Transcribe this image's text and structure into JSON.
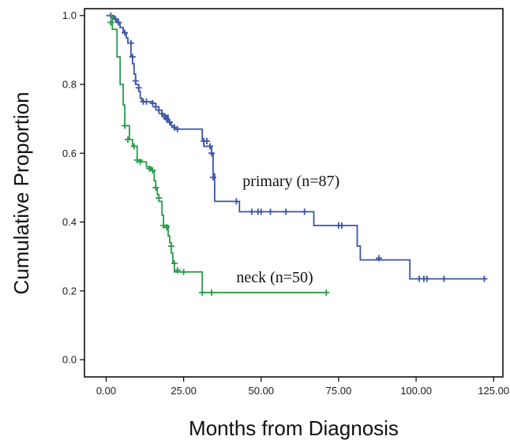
{
  "chart_data": {
    "type": "line",
    "xlabel": "Months from Diagnosis",
    "ylabel": "Cumulative Proportion",
    "xlim": [
      -7,
      128
    ],
    "ylim": [
      -0.05,
      1.02
    ],
    "x_ticks": [
      "0.00",
      "25.00",
      "50.00",
      "75.00",
      "100.00",
      "125.00"
    ],
    "x_tick_values": [
      0,
      25,
      50,
      75,
      100,
      125
    ],
    "y_ticks": [
      "0.0",
      "0.2",
      "0.4",
      "0.6",
      "0.8",
      "1.0"
    ],
    "y_tick_values": [
      0,
      0.2,
      0.4,
      0.6,
      0.8,
      1.0
    ],
    "grid": false,
    "step": true,
    "series": [
      {
        "name": "primary (n=87)",
        "color": "#3a55a6",
        "label_anchor": {
          "x": 44,
          "y": 0.505
        },
        "steps": [
          [
            0,
            1.0
          ],
          [
            2,
            1.0
          ],
          [
            2.5,
            0.99
          ],
          [
            3.5,
            0.98
          ],
          [
            4.5,
            0.965
          ],
          [
            5.5,
            0.95
          ],
          [
            6.5,
            0.935
          ],
          [
            7,
            0.92
          ],
          [
            8,
            0.88
          ],
          [
            8.5,
            0.86
          ],
          [
            9,
            0.83
          ],
          [
            9.5,
            0.8
          ],
          [
            10.5,
            0.78
          ],
          [
            11,
            0.76
          ],
          [
            11.5,
            0.75
          ],
          [
            15,
            0.745
          ],
          [
            16,
            0.735
          ],
          [
            17,
            0.725
          ],
          [
            18,
            0.71
          ],
          [
            20,
            0.69
          ],
          [
            21,
            0.68
          ],
          [
            22,
            0.67
          ],
          [
            31,
            0.64
          ],
          [
            31.5,
            0.62
          ],
          [
            34,
            0.6
          ],
          [
            34.5,
            0.54
          ],
          [
            35,
            0.46
          ],
          [
            42,
            0.46
          ],
          [
            43,
            0.43
          ],
          [
            65,
            0.43
          ],
          [
            67,
            0.39
          ],
          [
            78,
            0.39
          ],
          [
            81,
            0.33
          ],
          [
            82,
            0.29
          ],
          [
            97,
            0.29
          ],
          [
            98,
            0.235
          ],
          [
            122,
            0.235
          ]
        ],
        "censored": [
          [
            1.5,
            1.0
          ],
          [
            3,
            0.99
          ],
          [
            4,
            0.98
          ],
          [
            6,
            0.95
          ],
          [
            8,
            0.92
          ],
          [
            8.5,
            0.88
          ],
          [
            9.5,
            0.81
          ],
          [
            10.5,
            0.79
          ],
          [
            12,
            0.75
          ],
          [
            13,
            0.75
          ],
          [
            15,
            0.745
          ],
          [
            16,
            0.735
          ],
          [
            17,
            0.725
          ],
          [
            18,
            0.715
          ],
          [
            19,
            0.705
          ],
          [
            19.5,
            0.7
          ],
          [
            20.5,
            0.69
          ],
          [
            22,
            0.675
          ],
          [
            23,
            0.67
          ],
          [
            31.5,
            0.635
          ],
          [
            32.5,
            0.635
          ],
          [
            33.5,
            0.62
          ],
          [
            34,
            0.6
          ],
          [
            34.5,
            0.53
          ],
          [
            42,
            0.46
          ],
          [
            47,
            0.43
          ],
          [
            49,
            0.43
          ],
          [
            50,
            0.43
          ],
          [
            53,
            0.43
          ],
          [
            58,
            0.43
          ],
          [
            64,
            0.43
          ],
          [
            75,
            0.39
          ],
          [
            76,
            0.39
          ],
          [
            88,
            0.295
          ],
          [
            101,
            0.235
          ],
          [
            102.5,
            0.235
          ],
          [
            103.5,
            0.235
          ],
          [
            109,
            0.235
          ],
          [
            122,
            0.235
          ]
        ]
      },
      {
        "name": "neck (n=50)",
        "color": "#2a9a4a",
        "label_anchor": {
          "x": 42,
          "y": 0.225
        },
        "steps": [
          [
            0,
            1.0
          ],
          [
            1.5,
            1.0
          ],
          [
            2,
            0.96
          ],
          [
            3.5,
            0.88
          ],
          [
            4.5,
            0.8
          ],
          [
            5.5,
            0.74
          ],
          [
            6,
            0.68
          ],
          [
            7.5,
            0.64
          ],
          [
            8.5,
            0.62
          ],
          [
            10,
            0.58
          ],
          [
            11.5,
            0.575
          ],
          [
            13,
            0.56
          ],
          [
            14.5,
            0.55
          ],
          [
            15.5,
            0.52
          ],
          [
            16,
            0.5
          ],
          [
            16.5,
            0.48
          ],
          [
            17,
            0.46
          ],
          [
            18,
            0.42
          ],
          [
            18.5,
            0.39
          ],
          [
            20,
            0.36
          ],
          [
            20.5,
            0.34
          ],
          [
            21,
            0.31
          ],
          [
            21.5,
            0.28
          ],
          [
            22,
            0.255
          ],
          [
            31,
            0.195
          ],
          [
            71,
            0.195
          ]
        ],
        "censored": [
          [
            1.5,
            0.98
          ],
          [
            6,
            0.68
          ],
          [
            7,
            0.64
          ],
          [
            9,
            0.62
          ],
          [
            10,
            0.58
          ],
          [
            11,
            0.575
          ],
          [
            14,
            0.555
          ],
          [
            15,
            0.55
          ],
          [
            16,
            0.5
          ],
          [
            17,
            0.47
          ],
          [
            18.5,
            0.39
          ],
          [
            19.5,
            0.385
          ],
          [
            21,
            0.33
          ],
          [
            22,
            0.28
          ],
          [
            23,
            0.26
          ],
          [
            25,
            0.255
          ],
          [
            31,
            0.195
          ],
          [
            34,
            0.195
          ],
          [
            71,
            0.195
          ]
        ]
      }
    ]
  }
}
